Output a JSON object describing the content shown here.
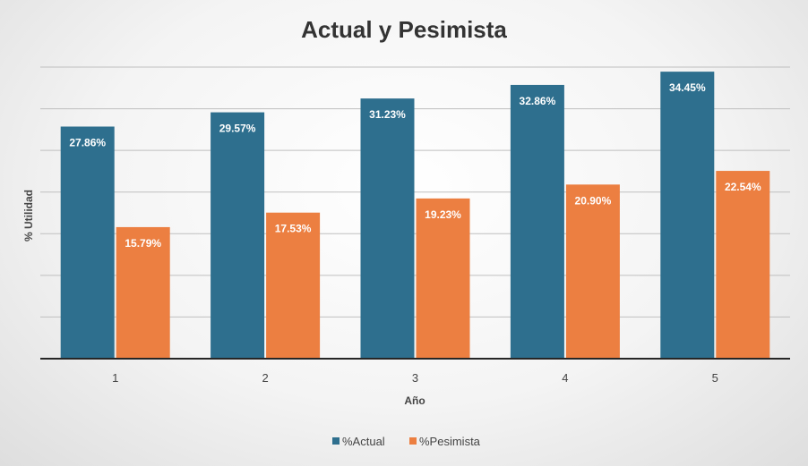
{
  "chart_data": {
    "type": "bar",
    "title": "Actual y Pesimista",
    "xlabel": "Año",
    "ylabel": "% Utilidad",
    "categories": [
      "1",
      "2",
      "3",
      "4",
      "5"
    ],
    "series": [
      {
        "name": "%Actual",
        "color": "#2E6F8E",
        "values": [
          27.86,
          29.57,
          31.23,
          32.86,
          34.45
        ],
        "labels": [
          "27.86%",
          "29.57%",
          "31.23%",
          "32.86%",
          "34.45%"
        ]
      },
      {
        "name": "%Pesimista",
        "color": "#EC7F41",
        "values": [
          15.79,
          17.53,
          19.23,
          20.9,
          22.54
        ],
        "labels": [
          "15.79%",
          "17.53%",
          "19.23%",
          "20.90%",
          "22.54%"
        ]
      }
    ],
    "ylim": [
      0,
      35
    ],
    "grid": true,
    "legend": "bottom"
  }
}
